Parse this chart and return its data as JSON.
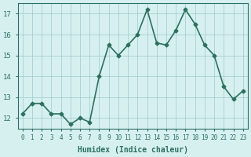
{
  "x_values": [
    0,
    1,
    2,
    3,
    4,
    5,
    6,
    7,
    8,
    9,
    10,
    11,
    12,
    13,
    14,
    15,
    16,
    17,
    18,
    19,
    20,
    21,
    22,
    23
  ],
  "y_values": [
    12.2,
    12.7,
    12.7,
    12.2,
    12.2,
    11.7,
    12.0,
    11.8,
    14.0,
    15.5,
    15.0,
    15.5,
    16.0,
    17.2,
    15.6,
    15.5,
    16.2,
    17.2,
    16.5,
    15.5,
    15.0,
    13.5,
    12.9,
    13.3
  ],
  "xlabel": "Humidex (Indice chaleur)",
  "ylim": [
    11.5,
    17.5
  ],
  "xlim": [
    -0.5,
    23.5
  ],
  "yticks": [
    12,
    13,
    14,
    15,
    16,
    17
  ],
  "xticks": [
    0,
    1,
    2,
    3,
    4,
    5,
    6,
    7,
    8,
    9,
    10,
    11,
    12,
    13,
    14,
    15,
    16,
    17,
    18,
    19,
    20,
    21,
    22,
    23
  ],
  "line_color": "#2d7060",
  "bg_color": "#d6f0f0",
  "grid_color": "#a0c8c8",
  "marker": "D",
  "marker_size": 2.5,
  "line_width": 1.2
}
